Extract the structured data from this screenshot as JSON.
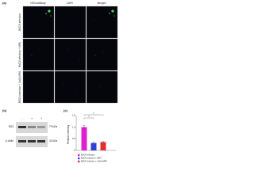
{
  "panel_a": {
    "label": "(a)",
    "columns": [
      "NS3 antibody",
      "DAPI",
      "Merged"
    ],
    "rows": [
      "BVDV-infection",
      "BVDV-infection + MPA",
      "BVDV-infection + Zn(II)-MPA"
    ]
  },
  "panel_b": {
    "label": "(b)",
    "lanes": [
      "-",
      "+",
      "+"
    ],
    "bands": [
      "NS3",
      "β-Actin"
    ],
    "sizes": [
      "70 kDa",
      "43 kDa"
    ]
  },
  "chart_data": {
    "type": "bar",
    "label": "(c)",
    "y_label": "Relative intensity",
    "categories": [
      "BVDV-infection",
      "BVDV-infection + MPA",
      "BVDV-infection + Zn(II)-MPA"
    ],
    "values": [
      1.0,
      0.32,
      0.36
    ],
    "errors": [
      0.08,
      0.03,
      0.03
    ],
    "colors": [
      "#e020d0",
      "#3040d0",
      "#e03030"
    ],
    "ylim": [
      0,
      1.5
    ],
    "yticks": [
      0,
      0.5,
      {
        "value": 1,
        "label": "1.0"
      },
      1.5
    ],
    "annotations": [
      "**",
      "**"
    ]
  }
}
